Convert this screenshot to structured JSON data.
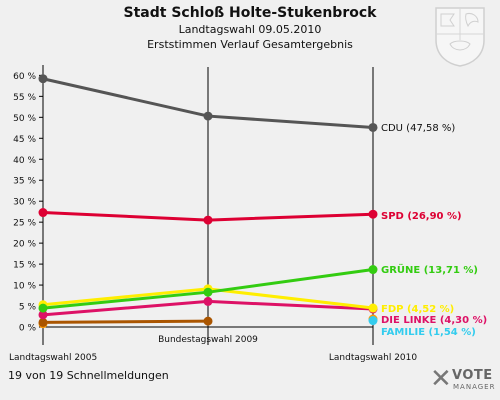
{
  "header": {
    "title": "Stadt Schloß Holte-Stukenbrock",
    "subtitle1": "Landtagswahl 09.05.2010",
    "subtitle2": "Erststimmen Verlauf Gesamtergebnis"
  },
  "footer": {
    "status_text": "19 von 19 Schnellmeldungen"
  },
  "logo": {
    "brand": "VOTE",
    "tagline": "MANAGER"
  },
  "icons": {
    "crest": "coat-of-arms-icon",
    "logo_mark": "vote-x-icon"
  },
  "chart_data": {
    "type": "line",
    "categories": [
      "Landtagswahl 2005",
      "Bundestagswahl 2009",
      "Landtagswahl 2010"
    ],
    "ylim": [
      0,
      62
    ],
    "yticks": [
      "0 %",
      "5 %",
      "10 %",
      "15 %",
      "20 %",
      "25 %",
      "30 %",
      "35 %",
      "40 %",
      "45 %",
      "50 %",
      "55 %",
      "60 %"
    ],
    "grid": false,
    "series": [
      {
        "name": "CDU",
        "label": "CDU (47,58 %)",
        "color": "#555555",
        "label_color": "#111111",
        "values": [
          59.2,
          50.3,
          47.58
        ]
      },
      {
        "name": "SPD",
        "label": "SPD (26,90 %)",
        "color": "#dd0033",
        "label_color": "#dd0033",
        "values": [
          27.3,
          25.5,
          26.9
        ]
      },
      {
        "name": "GRÜNE",
        "label": "GRÜNE (13,71 %)",
        "color": "#33cc11",
        "label_color": "#33cc11",
        "values": [
          4.5,
          8.3,
          13.71
        ]
      },
      {
        "name": "FDP",
        "label": "FDP (4,52 %)",
        "color": "#ffee00",
        "label_color": "#ffee00",
        "values": [
          5.3,
          9.1,
          4.52
        ]
      },
      {
        "name": "DIE LINKE",
        "label": "DIE LINKE (4,30 %)",
        "color": "#dd1166",
        "label_color": "#dd1166",
        "values": [
          2.9,
          6.1,
          4.3
        ]
      },
      {
        "name": "FAMILIE",
        "label": "FAMILIE (1,54 %)",
        "color": "#33ccee",
        "label_color": "#33ccee",
        "values": [
          null,
          null,
          1.54
        ]
      },
      {
        "name": "",
        "label": "",
        "color": "#aa5500",
        "label_color": "#aa5500",
        "values": [
          1.1,
          1.4,
          null
        ]
      },
      {
        "name": "",
        "label": "",
        "color": "#ff9900",
        "label_color": "#ff9900",
        "values": [
          0.8,
          null,
          1.9
        ]
      }
    ]
  }
}
